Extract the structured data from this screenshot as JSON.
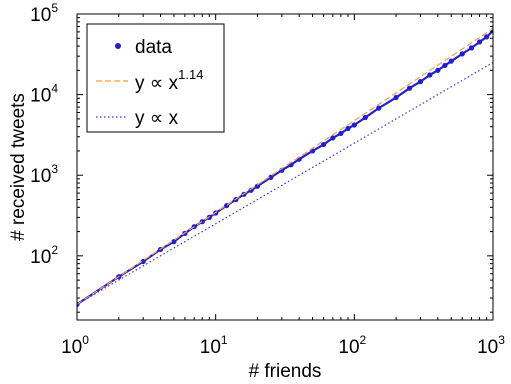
{
  "chart_data": {
    "type": "line",
    "xlabel": "# friends",
    "ylabel": "# received tweets",
    "x_scale": "log",
    "y_scale": "log",
    "xlim": [
      1,
      1000
    ],
    "ylim": [
      16,
      100000
    ],
    "x_ticks": [
      {
        "value": 1,
        "base": "10",
        "exp": "0"
      },
      {
        "value": 10,
        "base": "10",
        "exp": "1"
      },
      {
        "value": 100,
        "base": "10",
        "exp": "2"
      },
      {
        "value": 1000,
        "base": "10",
        "exp": "3"
      }
    ],
    "y_ticks": [
      {
        "value": 100,
        "base": "10",
        "exp": "2"
      },
      {
        "value": 1000,
        "base": "10",
        "exp": "3"
      },
      {
        "value": 10000,
        "base": "10",
        "exp": "4"
      },
      {
        "value": 100000,
        "base": "10",
        "exp": "5"
      }
    ],
    "grid": false,
    "legend_position": "top-left",
    "series": [
      {
        "name": "data",
        "style": "points",
        "color": "#1f1fd6",
        "x": [
          1,
          2,
          3,
          4,
          5,
          6,
          7,
          8,
          9,
          10,
          12,
          14,
          16,
          18,
          20,
          25,
          30,
          35,
          40,
          50,
          60,
          70,
          80,
          90,
          100,
          120,
          150,
          200,
          250,
          300,
          350,
          400,
          450,
          500,
          600,
          700,
          800,
          900,
          1000
        ],
        "y": [
          25,
          55,
          85,
          120,
          150,
          190,
          230,
          265,
          300,
          340,
          420,
          500,
          580,
          650,
          730,
          940,
          1150,
          1350,
          1580,
          2000,
          2400,
          2900,
          3300,
          3800,
          4200,
          5200,
          6800,
          9200,
          12000,
          14500,
          17500,
          20000,
          23000,
          26000,
          32000,
          38000,
          45000,
          52000,
          62000
        ]
      },
      {
        "name": "y ∝ x",
        "name_exp": "1.14",
        "style": "dashed",
        "color": "#ff9933",
        "exponent": 1.14,
        "coef": 25
      },
      {
        "name": "y ∝ x",
        "name_exp": "",
        "style": "dotted",
        "color": "#3333ff",
        "exponent": 1,
        "coef": 25
      }
    ]
  }
}
